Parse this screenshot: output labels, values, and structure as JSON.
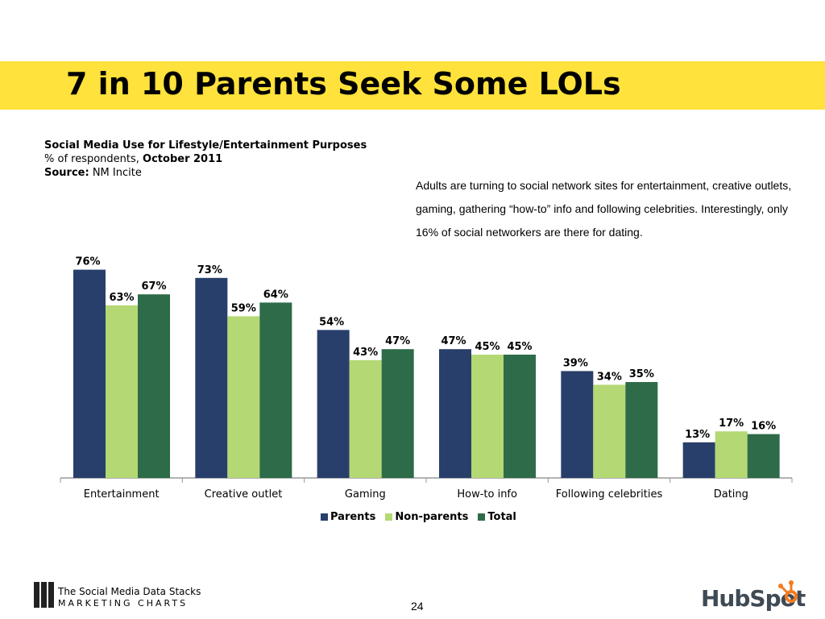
{
  "slide": {
    "title": "7 in 10 Parents Seek Some LOLs",
    "subtitle": "Social Media Use for Lifestyle/Entertainment Purposes",
    "measure_prefix": "% of respondents, ",
    "measure_date": "October 2011",
    "source_label": "Source:",
    "source_value": " NM Incite",
    "note": "Adults are turning to social network sites for entertainment, creative outlets, gaming, gathering “how-to” info and following celebrities. Interestingly, only 16% of social networkers are there for dating.",
    "page_number": "24"
  },
  "branding": {
    "mc_line1": "The Social Media Data Stacks",
    "mc_line2": "MARKETING CHARTS",
    "hubspot": "HubSpot"
  },
  "colors": {
    "band": "#FFE23B",
    "parents": "#283F6B",
    "non_parents": "#B4D874",
    "total": "#2E6B48"
  },
  "chart_data": {
    "type": "bar",
    "categories": [
      "Entertainment",
      "Creative outlet",
      "Gaming",
      "How-to info",
      "Following celebrities",
      "Dating"
    ],
    "series": [
      {
        "name": "Parents",
        "values": [
          76,
          73,
          54,
          47,
          39,
          13
        ],
        "color": "#283F6B"
      },
      {
        "name": "Non-parents",
        "values": [
          63,
          59,
          43,
          45,
          34,
          17
        ],
        "color": "#B4D874"
      },
      {
        "name": "Total",
        "values": [
          67,
          64,
          47,
          45,
          35,
          16
        ],
        "color": "#2E6B48"
      }
    ],
    "value_suffix": "%",
    "ylim": [
      0,
      100
    ],
    "grid": false,
    "legend_position": "bottom"
  }
}
